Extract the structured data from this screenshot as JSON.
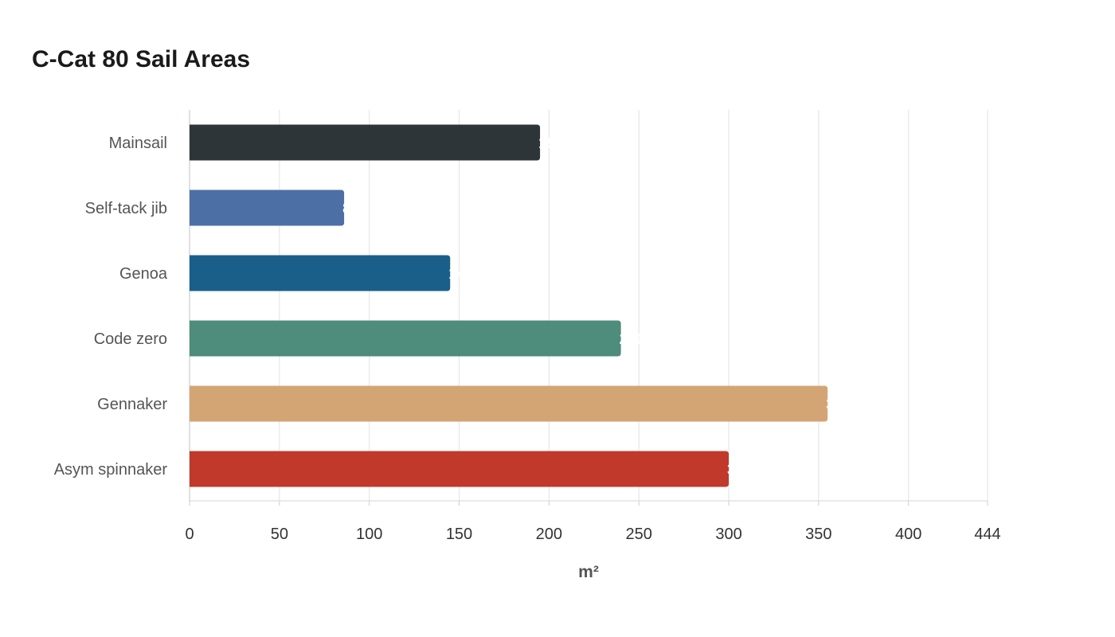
{
  "chart_data": {
    "type": "bar",
    "orientation": "horizontal",
    "title": "C-Cat 80 Sail Areas",
    "xlabel": "m²",
    "ylabel": "",
    "categories": [
      "Mainsail",
      "Self-tack jib",
      "Genoa",
      "Code zero",
      "Gennaker",
      "Asym spinnaker"
    ],
    "values": [
      195,
      86,
      145,
      240,
      355,
      300
    ],
    "colors": [
      "#2d3538",
      "#4c6fa5",
      "#1a5f8a",
      "#4e8c7b",
      "#d3a574",
      "#c0392b"
    ],
    "xlim": [
      0,
      444
    ],
    "xticks": [
      0,
      50,
      100,
      150,
      200,
      250,
      300,
      350,
      400,
      444
    ],
    "grid": true,
    "legend": "none"
  }
}
